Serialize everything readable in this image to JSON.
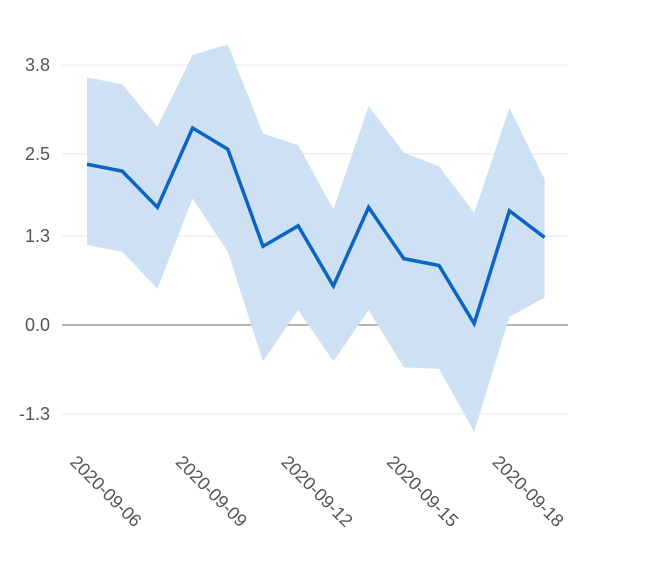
{
  "chart_data": {
    "type": "line",
    "title": "",
    "xlabel": "",
    "ylabel": "",
    "x": [
      "2020-09-06",
      "2020-09-07",
      "2020-09-08",
      "2020-09-09",
      "2020-09-10",
      "2020-09-11",
      "2020-09-12",
      "2020-09-13",
      "2020-09-14",
      "2020-09-15",
      "2020-09-16",
      "2020-09-17",
      "2020-09-18",
      "2020-09-19"
    ],
    "series": [
      {
        "values": [
          2.35,
          2.25,
          1.72,
          2.88,
          2.57,
          1.15,
          1.45,
          0.57,
          1.72,
          0.97,
          0.87,
          0.02,
          1.67,
          1.28
        ],
        "lower": [
          1.17,
          1.07,
          0.53,
          1.85,
          1.07,
          -0.53,
          0.22,
          -0.53,
          0.22,
          -0.62,
          -0.64,
          -1.56,
          0.12,
          0.4
        ],
        "upper": [
          3.62,
          3.52,
          2.9,
          3.95,
          4.1,
          2.8,
          2.63,
          1.69,
          3.2,
          2.52,
          2.32,
          1.64,
          3.17,
          2.13
        ]
      }
    ],
    "yticks": [
      "3.8",
      "2.5",
      "1.3",
      "0.0",
      "-1.3"
    ],
    "ytick_values": [
      3.8,
      2.5,
      1.3,
      0.0,
      -1.3
    ],
    "xticks": [
      "2020-09-06",
      "2020-09-09",
      "2020-09-12",
      "2020-09-15",
      "2020-09-18"
    ],
    "ylim": [
      -1.8,
      4.3
    ],
    "grid": true,
    "colors": {
      "line": "#0a66c2",
      "band": "#cde0f4",
      "grid": "#e6e6e6",
      "zero": "#888888"
    }
  }
}
